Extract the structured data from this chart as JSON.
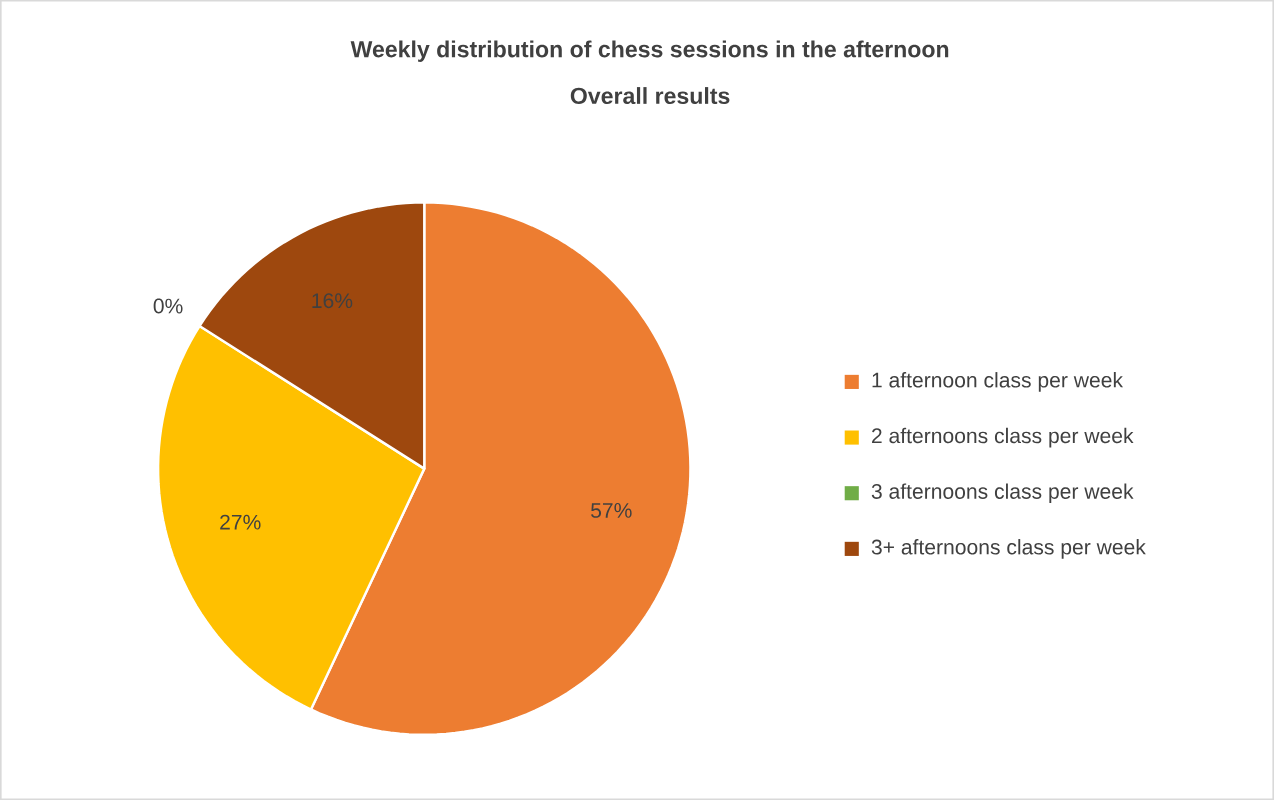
{
  "chart_data": {
    "type": "pie",
    "title": "Weekly distribution  of chess sessions in the afternoon",
    "subtitle": "Overall results",
    "categories": [
      "1 afternoon class per week",
      "2 afternoons class per week",
      "3 afternoons class per week",
      "3+ afternoons class per week"
    ],
    "values": [
      57,
      27,
      0,
      16
    ],
    "value_labels": [
      "57%",
      "27%",
      "0%",
      "16%"
    ],
    "colors": [
      "#ed7d31",
      "#ffc000",
      "#70ad47",
      "#9e480e"
    ],
    "legend": "right"
  }
}
